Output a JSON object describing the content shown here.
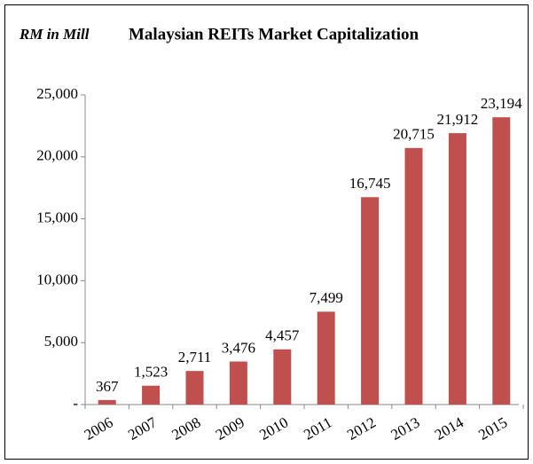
{
  "chart_data": {
    "type": "bar",
    "title": "Malaysian REITs Market Capitalization",
    "subtitle": "RM in Mill",
    "categories": [
      "2006",
      "2007",
      "2008",
      "2009",
      "2010",
      "2011",
      "2012",
      "2013",
      "2014",
      "2015"
    ],
    "values": [
      367,
      1523,
      2711,
      3476,
      4457,
      7499,
      16745,
      20715,
      21912,
      23194
    ],
    "value_labels": [
      "367",
      "1,523",
      "2,711",
      "3,476",
      "4,457",
      "7,499",
      "16,745",
      "20,715",
      "21,912",
      "23,194"
    ],
    "color": "#c0504d",
    "ylim": [
      0,
      25000
    ],
    "yticks": [
      {
        "value": 0,
        "label": "-"
      },
      {
        "value": 5000,
        "label": "5,000"
      },
      {
        "value": 10000,
        "label": "10,000"
      },
      {
        "value": 15000,
        "label": "15,000"
      },
      {
        "value": 20000,
        "label": "20,000"
      },
      {
        "value": 25000,
        "label": "25,000"
      }
    ],
    "grid": false
  }
}
